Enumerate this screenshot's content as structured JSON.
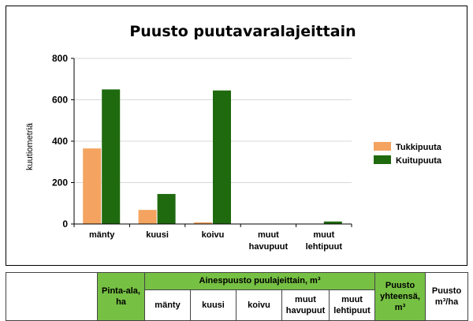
{
  "chart_data": {
    "type": "bar",
    "title": "Puusto puutavaralajeittain",
    "ylabel": "kuutiometriä",
    "xlabel": "",
    "ylim": [
      0,
      800
    ],
    "yticks": [
      0,
      200,
      400,
      600,
      800
    ],
    "categories": [
      [
        "mänty"
      ],
      [
        "kuusi"
      ],
      [
        "koivu"
      ],
      [
        "muut",
        "havupuut"
      ],
      [
        "muut",
        "lehtipuut"
      ]
    ],
    "series": [
      {
        "name": "Tukkipuuta",
        "color": "#f4a460",
        "values": [
          365,
          68,
          8,
          0,
          0
        ]
      },
      {
        "name": "Kuitupuuta",
        "color": "#1f6a0e",
        "values": [
          650,
          145,
          645,
          0,
          12
        ]
      }
    ],
    "legend": "right"
  },
  "table": {
    "pinta_ala": "Pinta-ala, ha",
    "aines_header": "Ainespuusto puulajeittain, m³",
    "species": [
      "mänty",
      "kuusi",
      "koivu",
      "muut havupuut",
      "muut lehtipuut"
    ],
    "puusto_yht": "Puusto yhteensä, m³",
    "puusto_ha": "Puusto m³/ha"
  },
  "colors": {
    "table_green": "#76c043"
  }
}
